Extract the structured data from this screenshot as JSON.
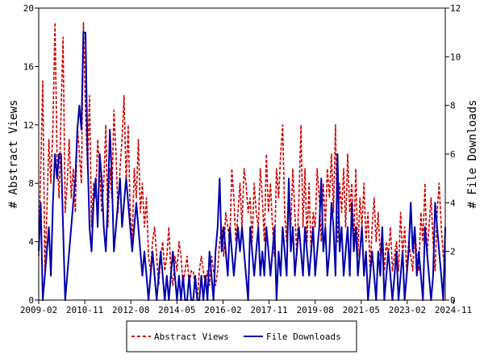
{
  "chart_data": {
    "type": "line",
    "xlabel": "",
    "ylabel_left": "# Abstract Views",
    "ylabel_right": "# File Downloads",
    "x_ticks": [
      "2009-02",
      "2010-11",
      "2012-08",
      "2014-05",
      "2016-02",
      "2017-11",
      "2019-08",
      "2021-05",
      "2023-02",
      "2024-11"
    ],
    "y_left_ticks": [
      "0",
      "4",
      "8",
      "12",
      "16",
      "20"
    ],
    "y_right_ticks": [
      "0",
      "2",
      "4",
      "6",
      "8",
      "10",
      "12"
    ],
    "ylim_left": [
      0,
      20
    ],
    "ylim_right": [
      0,
      12
    ],
    "grid": false,
    "legend_position": "bottom",
    "series": [
      {
        "name": "Abstract Views",
        "axis": "left",
        "color": "#cc0000",
        "style": "dashed",
        "values": [
          3,
          9,
          15,
          2,
          6,
          11,
          8,
          12,
          19,
          10,
          7,
          13,
          18,
          6,
          8,
          11,
          7,
          9,
          6,
          12,
          10,
          8,
          19,
          13,
          9,
          14,
          5,
          8,
          7,
          11,
          9,
          6,
          8,
          12,
          5,
          9,
          7,
          13,
          10,
          6,
          9,
          11,
          14,
          8,
          12,
          6,
          4,
          9,
          7,
          11,
          6,
          8,
          5,
          7,
          3,
          2,
          4,
          5,
          3,
          1,
          3,
          4,
          2,
          3,
          5,
          2,
          1,
          3,
          2,
          4,
          3,
          1,
          2,
          3,
          1,
          2,
          2,
          1,
          0,
          2,
          3,
          2,
          1,
          2,
          1,
          3,
          2,
          1,
          2,
          4,
          5,
          3,
          6,
          5,
          4,
          9,
          7,
          4,
          6,
          8,
          5,
          9,
          8,
          6,
          7,
          4,
          8,
          6,
          5,
          9,
          7,
          4,
          10,
          6,
          8,
          5,
          3,
          9,
          7,
          10,
          12,
          6,
          4,
          8,
          5,
          9,
          6,
          3,
          7,
          12,
          5,
          9,
          4,
          8,
          3,
          6,
          5,
          9,
          7,
          4,
          8,
          5,
          9,
          7,
          10,
          6,
          12,
          4,
          8,
          6,
          9,
          5,
          10,
          6,
          8,
          4,
          9,
          3,
          7,
          5,
          8,
          4,
          6,
          2,
          5,
          7,
          4,
          6,
          3,
          5,
          2,
          4,
          3,
          5,
          2,
          3,
          4,
          2,
          6,
          3,
          5,
          2,
          4,
          3,
          2,
          5,
          3,
          2,
          6,
          4,
          8,
          3,
          5,
          7,
          4,
          2,
          6,
          8,
          5,
          3,
          2
        ]
      },
      {
        "name": "File Downloads",
        "axis": "right",
        "color": "#0000aa",
        "style": "solid",
        "values": [
          2,
          4,
          0,
          1,
          2,
          3,
          1,
          4,
          6,
          5,
          6,
          6,
          3,
          0,
          1,
          2,
          3,
          4,
          5,
          7,
          8,
          7,
          11,
          11,
          6,
          3,
          2,
          4,
          5,
          3,
          6,
          5,
          3,
          2,
          4,
          7,
          5,
          2,
          3,
          4,
          5,
          3,
          4,
          5,
          4,
          3,
          2,
          3,
          4,
          3,
          2,
          1,
          2,
          1,
          0,
          1,
          2,
          1,
          0,
          1,
          2,
          1,
          0,
          1,
          0,
          1,
          2,
          1,
          0,
          1,
          0,
          1,
          0,
          0,
          1,
          0,
          0,
          1,
          0,
          0,
          1,
          0,
          1,
          0,
          2,
          1,
          0,
          2,
          3,
          5,
          2,
          3,
          2,
          1,
          3,
          2,
          1,
          2,
          3,
          2,
          3,
          2,
          1,
          0,
          3,
          2,
          1,
          2,
          3,
          1,
          2,
          1,
          3,
          2,
          1,
          2,
          3,
          0,
          2,
          1,
          3,
          2,
          1,
          5,
          2,
          3,
          1,
          2,
          3,
          2,
          1,
          3,
          2,
          1,
          2,
          3,
          1,
          2,
          3,
          5,
          2,
          3,
          1,
          2,
          4,
          3,
          1,
          6,
          2,
          3,
          1,
          2,
          3,
          1,
          4,
          2,
          3,
          1,
          2,
          3,
          1,
          2,
          0,
          1,
          2,
          1,
          0,
          2,
          1,
          3,
          0,
          1,
          2,
          1,
          0,
          1,
          2,
          0,
          1,
          2,
          0,
          1,
          2,
          4,
          2,
          3,
          1,
          2,
          1,
          0,
          3,
          2,
          1,
          0,
          1,
          4,
          3,
          2,
          1,
          0,
          3
        ]
      }
    ]
  }
}
